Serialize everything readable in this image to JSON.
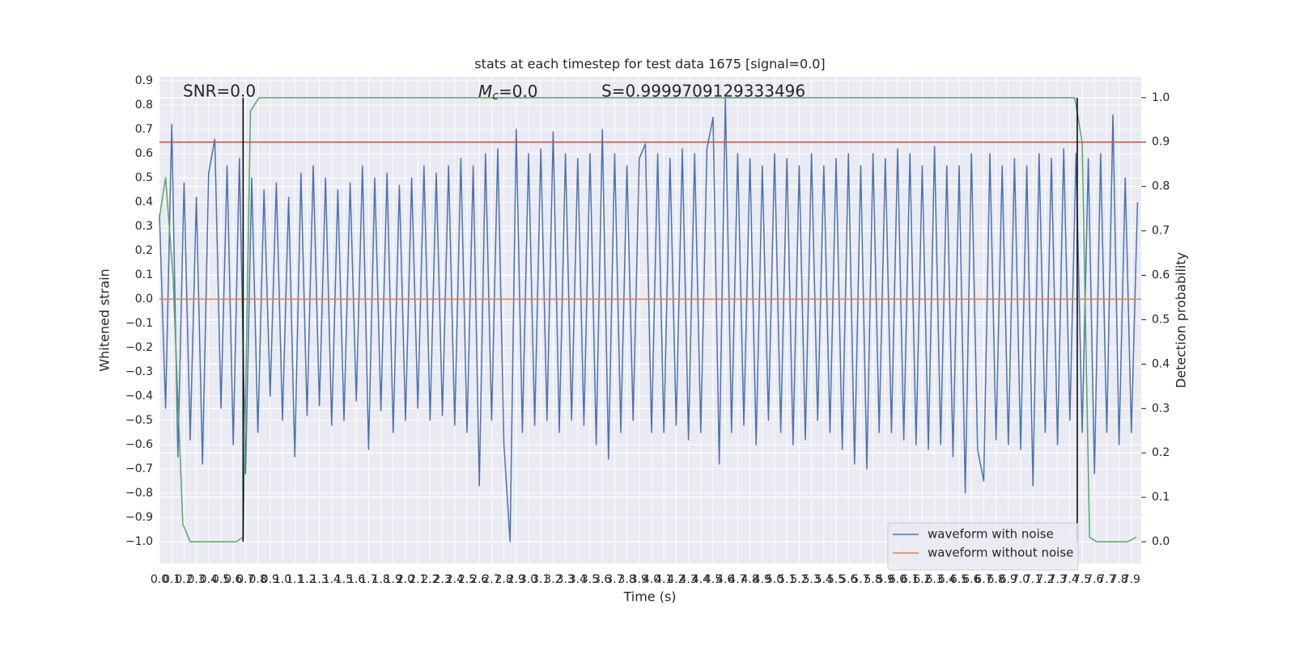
{
  "chart_data": {
    "type": "line",
    "title": "stats at each timestep for test data 1675 [signal=0.0]",
    "x_label": "Time (s)",
    "y_label": "Whitened strain",
    "y2_label": "Detection probability",
    "annotations": {
      "snr": "SNR=0.0",
      "mc": {
        "symbol": "M",
        "subscript": "c",
        "text": "=0.0"
      },
      "s": "S=0.9999709129333496"
    },
    "xlim": [
      0,
      7.98
    ],
    "ylim": [
      -1.09,
      0.917
    ],
    "y2lim": [
      -0.049,
      1.047
    ],
    "grid": true,
    "legend": "lower right",
    "xticks": [
      {
        "value": 0,
        "label": "0.0"
      },
      0.1,
      0.2,
      0.3,
      0.4,
      0.5,
      0.6,
      0.7,
      0.8,
      0.9,
      {
        "value": 1,
        "label": "1.0"
      },
      1.1,
      1.2,
      1.3,
      1.4,
      1.5,
      1.6,
      1.7,
      1.8,
      1.9,
      {
        "value": 2,
        "label": "2.0"
      },
      2.1,
      2.2,
      2.3,
      2.4,
      2.5,
      2.6,
      2.7,
      2.8,
      2.9,
      {
        "value": 3,
        "label": "3.0"
      },
      3.1,
      3.2,
      3.3,
      3.4,
      3.5,
      3.6,
      3.7,
      3.8,
      3.9,
      {
        "value": 4,
        "label": "4.0"
      },
      4.1,
      4.2,
      4.3,
      4.4,
      4.5,
      4.6,
      4.7,
      4.8,
      4.9,
      {
        "value": 5,
        "label": "5.0"
      },
      5.1,
      5.2,
      5.3,
      5.4,
      5.5,
      5.6,
      5.7,
      5.8,
      5.9,
      {
        "value": 6,
        "label": "6.0"
      },
      6.1,
      6.2,
      6.3,
      6.4,
      6.5,
      6.6,
      6.7,
      6.8,
      6.9,
      {
        "value": 7,
        "label": "7.0"
      },
      7.1,
      7.2,
      7.3,
      7.4,
      7.5,
      7.6,
      7.7,
      7.8,
      7.9
    ],
    "yticks": [
      {
        "value": -1,
        "label": "−1.0"
      },
      {
        "value": -0.9,
        "label": "−0.9"
      },
      {
        "value": -0.8,
        "label": "−0.8"
      },
      {
        "value": -0.7,
        "label": "−0.7"
      },
      {
        "value": -0.6,
        "label": "−0.6"
      },
      {
        "value": -0.5,
        "label": "−0.5"
      },
      {
        "value": -0.4,
        "label": "−0.4"
      },
      {
        "value": -0.3,
        "label": "−0.3"
      },
      {
        "value": -0.2,
        "label": "−0.2"
      },
      {
        "value": -0.1,
        "label": "−0.1"
      },
      {
        "value": 0,
        "label": "0.0"
      },
      0.1,
      0.2,
      0.3,
      0.4,
      0.5,
      0.6,
      0.7,
      0.8,
      0.9
    ],
    "y2ticks": [
      {
        "value": 0,
        "label": "0.0"
      },
      0.1,
      0.2,
      0.3,
      0.4,
      0.5,
      0.6,
      0.7,
      0.8,
      0.9,
      {
        "value": 1,
        "label": "1.0"
      }
    ],
    "series": [
      {
        "name": "waveform with noise",
        "color": "#4c72b0",
        "x": [
          0,
          0.05,
          0.1,
          0.15,
          0.2,
          0.25,
          0.3,
          0.35,
          0.4,
          0.45,
          0.5,
          0.55,
          0.6,
          0.65,
          0.7,
          0.75,
          0.8,
          0.85,
          0.9,
          0.95,
          1,
          1.05,
          1.1,
          1.15,
          1.2,
          1.25,
          1.3,
          1.35,
          1.4,
          1.45,
          1.5,
          1.55,
          1.6,
          1.65,
          1.7,
          1.75,
          1.8,
          1.85,
          1.9,
          1.95,
          2,
          2.05,
          2.1,
          2.15,
          2.2,
          2.25,
          2.3,
          2.35,
          2.4,
          2.45,
          2.5,
          2.55,
          2.6,
          2.65,
          2.7,
          2.75,
          2.8,
          2.85,
          2.9,
          2.95,
          3,
          3.05,
          3.1,
          3.15,
          3.2,
          3.25,
          3.3,
          3.35,
          3.4,
          3.45,
          3.5,
          3.55,
          3.6,
          3.65,
          3.7,
          3.75,
          3.8,
          3.85,
          3.9,
          3.95,
          4,
          4.05,
          4.1,
          4.15,
          4.2,
          4.25,
          4.3,
          4.35,
          4.4,
          4.45,
          4.5,
          4.55,
          4.6,
          4.65,
          4.7,
          4.75,
          4.8,
          4.85,
          4.9,
          4.95,
          5,
          5.05,
          5.1,
          5.15,
          5.2,
          5.25,
          5.3,
          5.35,
          5.4,
          5.45,
          5.5,
          5.55,
          5.6,
          5.65,
          5.7,
          5.75,
          5.8,
          5.85,
          5.9,
          5.95,
          6,
          6.05,
          6.1,
          6.15,
          6.2,
          6.25,
          6.3,
          6.35,
          6.4,
          6.45,
          6.5,
          6.55,
          6.6,
          6.65,
          6.7,
          6.75,
          6.8,
          6.85,
          6.9,
          6.95,
          7,
          7.05,
          7.1,
          7.15,
          7.2,
          7.25,
          7.3,
          7.35,
          7.4,
          7.45,
          7.5,
          7.55,
          7.6,
          7.65,
          7.7,
          7.75,
          7.8,
          7.85,
          7.9,
          7.95
        ],
        "values": [
          0.35,
          -0.45,
          0.72,
          -0.65,
          0.48,
          -0.58,
          0.42,
          -0.68,
          0.52,
          0.66,
          -0.45,
          0.55,
          -0.6,
          0.58,
          -0.72,
          0.5,
          -0.55,
          0.45,
          -0.4,
          0.48,
          -0.5,
          0.42,
          -0.65,
          0.52,
          -0.48,
          0.55,
          -0.44,
          0.5,
          -0.52,
          0.45,
          -0.5,
          0.48,
          -0.42,
          0.55,
          -0.62,
          0.5,
          -0.46,
          0.52,
          -0.55,
          0.47,
          -0.5,
          0.5,
          -0.45,
          0.55,
          -0.5,
          0.52,
          -0.48,
          0.55,
          -0.52,
          0.58,
          -0.55,
          0.55,
          -0.77,
          0.6,
          -0.5,
          0.62,
          -0.6,
          -1.0,
          0.7,
          -0.55,
          0.6,
          -0.52,
          0.62,
          -0.5,
          0.69,
          -0.55,
          0.6,
          -0.5,
          0.58,
          -0.52,
          0.6,
          -0.6,
          0.7,
          -0.66,
          0.6,
          -0.55,
          0.55,
          -0.5,
          0.58,
          0.64,
          -0.55,
          0.6,
          -0.55,
          0.58,
          -0.52,
          0.62,
          -0.58,
          0.6,
          -0.55,
          0.62,
          0.75,
          -0.68,
          0.83,
          -0.55,
          0.6,
          -0.52,
          0.58,
          -0.6,
          0.55,
          -0.5,
          0.6,
          -0.55,
          0.58,
          -0.6,
          0.55,
          -0.58,
          0.6,
          -0.5,
          0.55,
          -0.55,
          0.58,
          -0.62,
          0.6,
          -0.68,
          0.55,
          -0.7,
          0.6,
          -0.55,
          0.58,
          -0.55,
          0.62,
          -0.58,
          0.6,
          -0.6,
          0.55,
          -0.62,
          0.63,
          -0.6,
          0.55,
          -0.65,
          0.55,
          -0.8,
          0.6,
          -0.62,
          -0.75,
          0.6,
          -0.58,
          0.55,
          -0.6,
          0.58,
          -0.62,
          0.55,
          -0.77,
          0.6,
          -0.55,
          0.58,
          -0.6,
          0.62,
          -0.5,
          0.6,
          -0.55,
          0.58,
          -0.72,
          0.6,
          -0.55,
          0.76,
          -0.6,
          0.5,
          -0.55,
          0.4
        ]
      },
      {
        "name": "waveform without noise",
        "color": "#dd8452",
        "x": [
          0,
          7.98
        ],
        "values": [
          0,
          0
        ]
      },
      {
        "color": "#55a868",
        "axis": "y2",
        "x": [
          0,
          0.05,
          0.11,
          0.19,
          0.25,
          0.62,
          0.68,
          0.74,
          0.81,
          7.44,
          7.5,
          7.56,
          7.62,
          7.87,
          7.94
        ],
        "values": [
          0.73,
          0.82,
          0.6,
          0.04,
          0.0,
          0.0,
          0.01,
          0.97,
          1.0,
          1.0,
          0.9,
          0.01,
          0.0,
          0.0,
          0.01
        ]
      }
    ],
    "threshold": {
      "value": 0.9,
      "axis": "y2",
      "color": "#c44e52"
    },
    "vlines": {
      "x": [
        0.68,
        7.46
      ],
      "color": "#000000"
    }
  }
}
